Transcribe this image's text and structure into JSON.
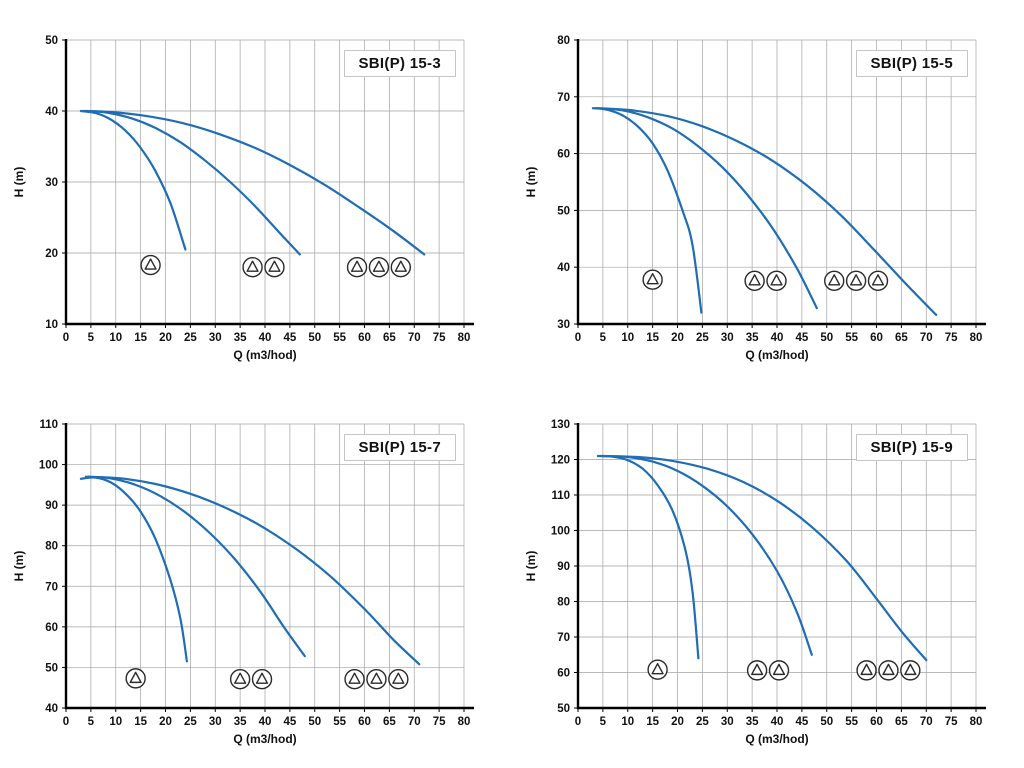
{
  "style": {
    "curve_color": "#1f6db4",
    "grid_color": "#a3a3a3",
    "axis_color": "#000000",
    "text_color": "#111111",
    "background": "#ffffff"
  },
  "chart_data": [
    {
      "type": "line",
      "title": "SBI(P) 15-3",
      "xlabel": "Q (m3/hod)",
      "ylabel": "H (m)",
      "xlim": [
        0,
        80
      ],
      "xtick": 5,
      "ylim": [
        10,
        50
      ],
      "ytick": 10,
      "grid": true,
      "legend": "none",
      "series": [
        {
          "name": "1 pump",
          "points": [
            [
              3,
              40
            ],
            [
              6,
              39.7
            ],
            [
              9,
              38.8
            ],
            [
              12,
              37.2
            ],
            [
              15,
              34.8
            ],
            [
              18,
              31.5
            ],
            [
              21,
              27
            ],
            [
              24,
              20.5
            ]
          ]
        },
        {
          "name": "2 pumps",
          "points": [
            [
              3.5,
              40
            ],
            [
              8,
              39.8
            ],
            [
              13,
              39
            ],
            [
              18,
              37.6
            ],
            [
              23,
              35.6
            ],
            [
              28,
              33
            ],
            [
              33,
              30
            ],
            [
              38,
              26.6
            ],
            [
              43,
              22.8
            ],
            [
              47,
              19.8
            ]
          ]
        },
        {
          "name": "3 pumps",
          "points": [
            [
              4,
              40
            ],
            [
              10,
              39.8
            ],
            [
              17,
              39.2
            ],
            [
              24,
              38.2
            ],
            [
              31,
              36.7
            ],
            [
              38,
              34.8
            ],
            [
              45,
              32.4
            ],
            [
              52,
              29.6
            ],
            [
              59,
              26.4
            ],
            [
              66,
              23
            ],
            [
              72,
              19.8
            ]
          ]
        }
      ],
      "pump_icons": [
        [
          17,
          18.3
        ],
        [
          37.5,
          18
        ],
        [
          41.9,
          18
        ],
        [
          58.5,
          18
        ],
        [
          62.9,
          18
        ],
        [
          67.3,
          18
        ]
      ]
    },
    {
      "type": "line",
      "title": "SBI(P) 15-5",
      "xlabel": "Q (m3/hod)",
      "ylabel": "H (m)",
      "xlim": [
        0,
        80
      ],
      "xtick": 5,
      "ylim": [
        30,
        80
      ],
      "ytick": 10,
      "grid": true,
      "legend": "none",
      "series": [
        {
          "name": "1 pump",
          "points": [
            [
              3,
              68
            ],
            [
              6,
              67.7
            ],
            [
              9,
              66.7
            ],
            [
              12,
              64.8
            ],
            [
              15,
              61.8
            ],
            [
              18,
              57
            ],
            [
              21,
              50
            ],
            [
              23,
              44
            ],
            [
              24.8,
              32
            ]
          ]
        },
        {
          "name": "2 pumps",
          "points": [
            [
              3.5,
              68
            ],
            [
              9,
              67.6
            ],
            [
              14,
              66.4
            ],
            [
              19,
              64.4
            ],
            [
              24,
              61.4
            ],
            [
              29,
              57.6
            ],
            [
              34,
              52.8
            ],
            [
              39,
              47
            ],
            [
              44,
              39.8
            ],
            [
              48,
              32.8
            ]
          ]
        },
        {
          "name": "3 pumps",
          "points": [
            [
              4,
              68
            ],
            [
              11,
              67.6
            ],
            [
              18,
              66.6
            ],
            [
              25,
              64.8
            ],
            [
              32,
              62.2
            ],
            [
              39,
              58.8
            ],
            [
              46,
              54.4
            ],
            [
              53,
              49
            ],
            [
              60,
              42.6
            ],
            [
              66,
              37
            ],
            [
              72,
              31.6
            ]
          ]
        }
      ],
      "pump_icons": [
        [
          15,
          37.8
        ],
        [
          35.5,
          37.6
        ],
        [
          39.9,
          37.6
        ],
        [
          51.5,
          37.6
        ],
        [
          55.9,
          37.6
        ],
        [
          60.3,
          37.6
        ]
      ]
    },
    {
      "type": "line",
      "title": "SBI(P) 15-7",
      "xlabel": "Q (m3/hod)",
      "ylabel": "H (m)",
      "xlim": [
        0,
        80
      ],
      "xtick": 5,
      "ylim": [
        40,
        110
      ],
      "ytick": 10,
      "grid": true,
      "legend": "none",
      "series": [
        {
          "name": "1 pump",
          "points": [
            [
              3,
              96.5
            ],
            [
              6,
              96.8
            ],
            [
              9,
              95.6
            ],
            [
              12,
              92.8
            ],
            [
              15,
              88.4
            ],
            [
              18,
              81.6
            ],
            [
              21,
              71.5
            ],
            [
              23,
              62
            ],
            [
              24.3,
              51.5
            ]
          ]
        },
        {
          "name": "2 pumps",
          "points": [
            [
              4,
              97
            ],
            [
              9,
              96.6
            ],
            [
              14,
              95
            ],
            [
              19,
              92.2
            ],
            [
              24,
              88.2
            ],
            [
              29,
              83
            ],
            [
              34,
              76.6
            ],
            [
              39,
              68.8
            ],
            [
              44,
              59.6
            ],
            [
              48,
              52.8
            ]
          ]
        },
        {
          "name": "3 pumps",
          "points": [
            [
              4.5,
              97
            ],
            [
              11,
              96.6
            ],
            [
              18,
              95.2
            ],
            [
              25,
              92.8
            ],
            [
              32,
              89.4
            ],
            [
              39,
              85
            ],
            [
              46,
              79.4
            ],
            [
              53,
              72.6
            ],
            [
              60,
              64.4
            ],
            [
              66,
              56.6
            ],
            [
              71,
              50.8
            ]
          ]
        }
      ],
      "pump_icons": [
        [
          14,
          47.3
        ],
        [
          35,
          47.1
        ],
        [
          39.4,
          47.1
        ],
        [
          58,
          47.1
        ],
        [
          62.4,
          47.1
        ],
        [
          66.8,
          47.1
        ]
      ]
    },
    {
      "type": "line",
      "title": "SBI(P) 15-9",
      "xlabel": "Q (m3/hod)",
      "ylabel": "H (m)",
      "xlim": [
        0,
        80
      ],
      "xtick": 5,
      "ylim": [
        50,
        130
      ],
      "ytick": 10,
      "grid": true,
      "legend": "none",
      "series": [
        {
          "name": "1 pump",
          "points": [
            [
              4,
              121
            ],
            [
              7,
              120.8
            ],
            [
              10,
              119.8
            ],
            [
              13,
              117.4
            ],
            [
              16,
              112.8
            ],
            [
              19,
              105.6
            ],
            [
              21.5,
              95
            ],
            [
              23,
              83
            ],
            [
              24.2,
              64
            ]
          ]
        },
        {
          "name": "2 pumps",
          "points": [
            [
              4.5,
              121
            ],
            [
              10,
              120.7
            ],
            [
              15,
              119.4
            ],
            [
              20,
              116.8
            ],
            [
              25,
              112.6
            ],
            [
              30,
              106.8
            ],
            [
              35,
              99
            ],
            [
              40,
              88.6
            ],
            [
              44,
              77
            ],
            [
              47,
              65
            ]
          ]
        },
        {
          "name": "3 pumps",
          "points": [
            [
              5,
              121
            ],
            [
              12,
              120.7
            ],
            [
              19,
              119.6
            ],
            [
              26,
              117.4
            ],
            [
              33,
              113.8
            ],
            [
              40,
              108.4
            ],
            [
              47,
              101
            ],
            [
              54,
              91.4
            ],
            [
              60,
              80.8
            ],
            [
              65,
              71.6
            ],
            [
              70,
              63.5
            ]
          ]
        }
      ],
      "pump_icons": [
        [
          16,
          60.8
        ],
        [
          36,
          60.6
        ],
        [
          40.4,
          60.6
        ],
        [
          58,
          60.6
        ],
        [
          62.4,
          60.6
        ],
        [
          66.8,
          60.6
        ]
      ]
    }
  ]
}
